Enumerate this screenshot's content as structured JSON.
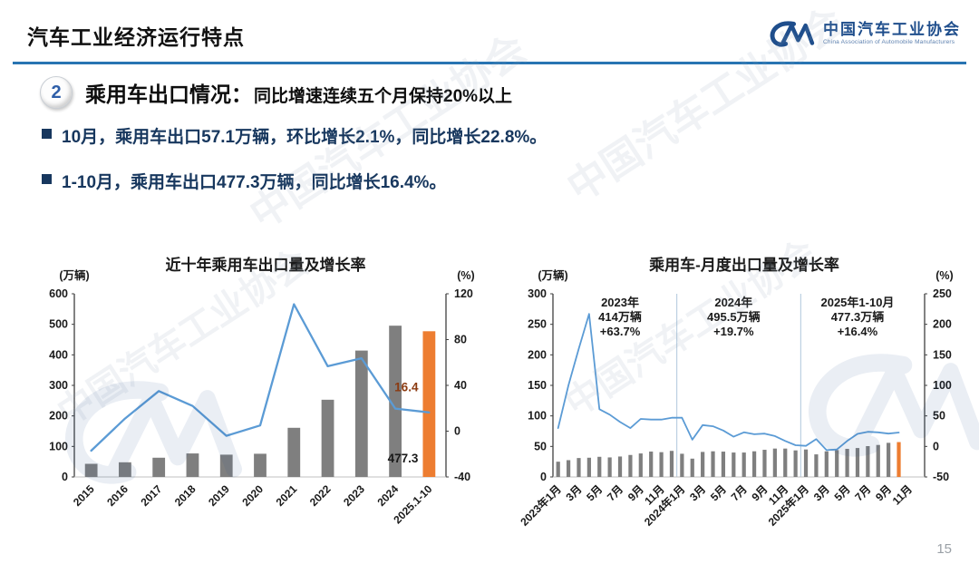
{
  "page": {
    "number": "15"
  },
  "watermark": "中国汽车工业协会",
  "header": {
    "title": "汽车工业经济运行特点",
    "logo": {
      "mark": "CM-swoosh",
      "name_cn": "中国汽车工业协会",
      "name_en": "China Association of Automobile Manufacturers"
    }
  },
  "section": {
    "badge": "2",
    "heading": "乘用车出口情况：",
    "subheading": "同比增速连续五个月保持20%以上",
    "bullets": [
      "10月，乘用车出口57.1万辆，环比增长2.1%，同比增长22.8%。",
      "1-10月，乘用车出口477.3万辆，同比增长16.4%。"
    ]
  },
  "colors": {
    "accent_blue": "#2874B2",
    "bar_gray": "#7F7F7F",
    "bar_orange": "#ED7D31",
    "line_blue": "#5B9BD5",
    "separator_blue": "#AFC7DC",
    "axis_dark": "#404040",
    "axis_light": "#C0C0C0",
    "tick_text": "#1a1a1a",
    "navy_text": "#17375E",
    "dark_red": "#8B3A10"
  },
  "chart_data": [
    {
      "type": "bar",
      "subtype": "combo bar+line, dual axis",
      "title": "近十年乘用车出口量及增长率",
      "left_axis": {
        "label": "(万辆)",
        "min": 0,
        "max": 600,
        "step": 100
      },
      "right_axis": {
        "label": "(%)",
        "min": -40,
        "max": 120,
        "step": 40
      },
      "categories": [
        "2015",
        "2016",
        "2017",
        "2018",
        "2019",
        "2020",
        "2021",
        "2022",
        "2023",
        "2024",
        "2025.1-10"
      ],
      "label_every": 1,
      "highlight_index": 10,
      "series": [
        {
          "name": "出口量(万辆)",
          "type": "bar",
          "axis": "left",
          "values": [
            43,
            48,
            63,
            77,
            73,
            76,
            161,
            252.9,
            414,
            495.5,
            477.3
          ]
        },
        {
          "name": "增长率(%)",
          "type": "line",
          "axis": "right",
          "values": [
            -17,
            11,
            35,
            22,
            -4,
            5,
            110.9,
            56.7,
            63.7,
            19.7,
            16.4
          ]
        }
      ],
      "value_labels": [
        {
          "text": "16.4",
          "index": 10,
          "axis": "right",
          "value": 38,
          "color": "#8B3A10"
        },
        {
          "text": "477.3",
          "index": 10,
          "axis": "left",
          "value": 60,
          "color": "#1a1a1a"
        }
      ],
      "separators": [],
      "annotations": []
    },
    {
      "type": "bar",
      "subtype": "combo bar+line, dual axis",
      "title": "乘用车-月度出口量及增长率",
      "left_axis": {
        "label": "(万辆)",
        "min": 0,
        "max": 300,
        "step": 50
      },
      "right_axis": {
        "label": "(%)",
        "min": -50,
        "max": 250,
        "step": 50
      },
      "categories": [
        "2023年1月",
        "2月",
        "3月",
        "4月",
        "5月",
        "6月",
        "7月",
        "8月",
        "9月",
        "10月",
        "11月",
        "12月",
        "2024年1月",
        "2月",
        "3月",
        "4月",
        "5月",
        "6月",
        "7月",
        "8月",
        "9月",
        "10月",
        "11月",
        "12月",
        "2025年1月",
        "2月",
        "3月",
        "4月",
        "5月",
        "6月",
        "7月",
        "8月",
        "9月",
        "10月",
        "11月",
        "12月"
      ],
      "label_every": 2,
      "highlight_index": 33,
      "series": [
        {
          "name": "出口量(万辆)",
          "type": "bar",
          "axis": "left",
          "values": [
            25,
            27.5,
            31,
            31.5,
            33,
            32,
            33.5,
            36,
            38.5,
            41.6,
            40.6,
            42.7,
            38,
            30,
            41,
            42,
            41.5,
            40,
            40,
            42,
            44.5,
            46.5,
            46.5,
            43.5,
            45,
            37,
            42,
            44,
            46,
            47.4,
            50.5,
            52.4,
            55.9,
            57.1,
            null,
            null
          ]
        },
        {
          "name": "增长率(%)",
          "type": "line",
          "axis": "right",
          "values": [
            30,
            100,
            160,
            217,
            61,
            52,
            40,
            30,
            45,
            44,
            44,
            47,
            47,
            11,
            35,
            33,
            26,
            16,
            23,
            20,
            21,
            17,
            9,
            2,
            1,
            12,
            -6,
            -5,
            9,
            20.5,
            24,
            23,
            21,
            22.8,
            null,
            null
          ]
        }
      ],
      "value_labels": [],
      "separators": [
        12,
        24
      ],
      "annotations": [
        {
          "index": 6,
          "lines": [
            "2023年",
            "414万辆",
            "+63.7%"
          ]
        },
        {
          "index": 17,
          "lines": [
            "2024年",
            "495.5万辆",
            "+19.7%"
          ]
        },
        {
          "index": 29,
          "lines": [
            "2025年1-10月",
            "477.3万辆",
            "+16.4%"
          ]
        }
      ]
    }
  ]
}
